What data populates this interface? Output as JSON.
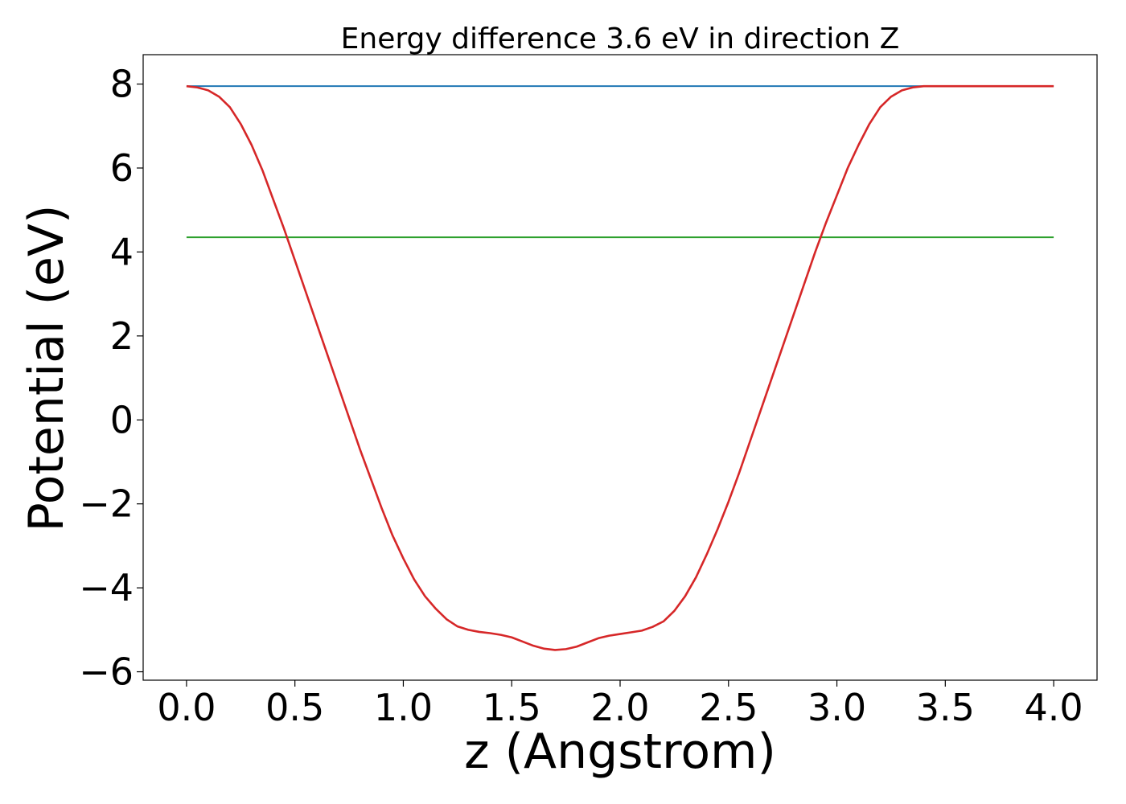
{
  "chart_data": {
    "type": "line",
    "title": "Energy difference 3.6 eV in direction Z",
    "xlabel": "z (Angstrom)",
    "ylabel": "Potential (eV)",
    "xlim": [
      -0.2,
      4.2
    ],
    "ylim": [
      -6.2,
      8.7
    ],
    "x_ticks": [
      0.0,
      0.5,
      1.0,
      1.5,
      2.0,
      2.5,
      3.0,
      3.5,
      4.0
    ],
    "x_tick_labels": [
      "0.0",
      "0.5",
      "1.0",
      "1.5",
      "2.0",
      "2.5",
      "3.0",
      "3.5",
      "4.0"
    ],
    "y_ticks": [
      -6,
      -4,
      -2,
      0,
      2,
      4,
      6,
      8
    ],
    "y_tick_labels": [
      "−6",
      "−4",
      "−2",
      "0",
      "2",
      "4",
      "6",
      "8"
    ],
    "grid": false,
    "legend": "none",
    "series": [
      {
        "color": "#1f77b4",
        "x": [
          0.0,
          4.0
        ],
        "y": [
          7.95,
          7.95
        ]
      },
      {
        "color": "#2ca02c",
        "x": [
          0.0,
          4.0
        ],
        "y": [
          4.35,
          4.35
        ]
      },
      {
        "color": "#d62728",
        "x": [
          0.0,
          0.05,
          0.1,
          0.15,
          0.2,
          0.25,
          0.3,
          0.35,
          0.4,
          0.45,
          0.5,
          0.55,
          0.6,
          0.65,
          0.7,
          0.75,
          0.8,
          0.85,
          0.9,
          0.95,
          1.0,
          1.05,
          1.1,
          1.15,
          1.2,
          1.25,
          1.3,
          1.35,
          1.4,
          1.45,
          1.5,
          1.55,
          1.6,
          1.65,
          1.7,
          1.75,
          1.8,
          1.85,
          1.9,
          1.95,
          2.0,
          2.05,
          2.1,
          2.15,
          2.2,
          2.25,
          2.3,
          2.35,
          2.4,
          2.45,
          2.5,
          2.55,
          2.6,
          2.65,
          2.7,
          2.75,
          2.8,
          2.85,
          2.9,
          2.95,
          3.0,
          3.05,
          3.1,
          3.15,
          3.2,
          3.25,
          3.3,
          3.35,
          3.4,
          3.45,
          3.5,
          3.55,
          3.6,
          3.65,
          3.7,
          3.75,
          3.8,
          3.85,
          3.9,
          3.95,
          4.0
        ],
        "y": [
          7.95,
          7.92,
          7.85,
          7.7,
          7.45,
          7.05,
          6.55,
          5.95,
          5.25,
          4.55,
          3.8,
          3.05,
          2.3,
          1.55,
          0.8,
          0.05,
          -0.7,
          -1.4,
          -2.1,
          -2.75,
          -3.3,
          -3.8,
          -4.2,
          -4.5,
          -4.75,
          -4.92,
          -5.0,
          -5.05,
          -5.08,
          -5.12,
          -5.18,
          -5.28,
          -5.38,
          -5.45,
          -5.48,
          -5.46,
          -5.4,
          -5.3,
          -5.2,
          -5.14,
          -5.1,
          -5.06,
          -5.02,
          -4.93,
          -4.8,
          -4.55,
          -4.2,
          -3.75,
          -3.2,
          -2.6,
          -1.95,
          -1.25,
          -0.5,
          0.25,
          1.0,
          1.75,
          2.5,
          3.25,
          4.0,
          4.7,
          5.35,
          6.0,
          6.55,
          7.05,
          7.45,
          7.7,
          7.85,
          7.92,
          7.95,
          7.95,
          7.95,
          7.95,
          7.95,
          7.95,
          7.95,
          7.95,
          7.95,
          7.95,
          7.95,
          7.95,
          7.95
        ]
      }
    ]
  }
}
